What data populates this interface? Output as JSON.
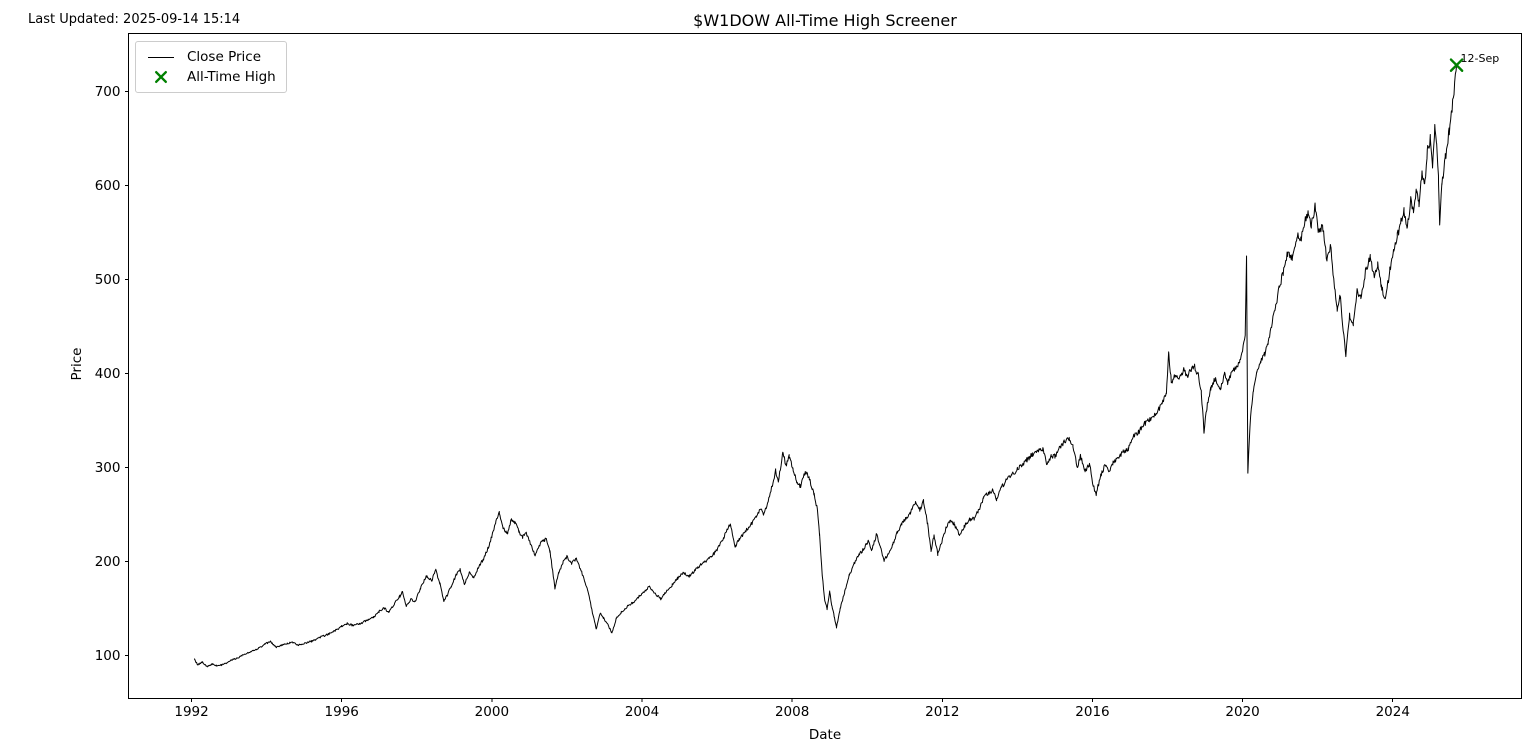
{
  "window": {
    "last_updated": "Last Updated: 2025-09-14 15:14"
  },
  "chart_data": {
    "type": "line",
    "title": "$W1DOW All-Time High Screener",
    "xlabel": "Date",
    "ylabel": "Price",
    "grid": false,
    "x_ticks": [
      1992,
      1996,
      2000,
      2004,
      2008,
      2012,
      2016,
      2020,
      2024
    ],
    "y_ticks": [
      100,
      200,
      300,
      400,
      500,
      600,
      700
    ],
    "xlim": [
      1990.32,
      2027.43
    ],
    "ylim": [
      54.3,
      761.7
    ],
    "line_color": "#000000",
    "ath_color": "#008000",
    "legend": {
      "position": "upper-left",
      "entries": [
        "Close Price",
        "All-Time High"
      ]
    },
    "ath_point": {
      "date_label": "12-Sep",
      "year": 2025.7,
      "price": 728
    },
    "close_price_anchors": [
      [
        1992.08,
        96
      ],
      [
        1992.16,
        90
      ],
      [
        1992.28,
        93
      ],
      [
        1992.42,
        88
      ],
      [
        1992.55,
        91
      ],
      [
        1992.68,
        89
      ],
      [
        1992.8,
        90
      ],
      [
        1992.92,
        92
      ],
      [
        1993.05,
        95
      ],
      [
        1993.2,
        97
      ],
      [
        1993.35,
        100
      ],
      [
        1993.5,
        103
      ],
      [
        1993.65,
        105
      ],
      [
        1993.8,
        108
      ],
      [
        1993.95,
        112
      ],
      [
        1994.1,
        115
      ],
      [
        1994.25,
        109
      ],
      [
        1994.4,
        111
      ],
      [
        1994.55,
        113
      ],
      [
        1994.7,
        114
      ],
      [
        1994.85,
        111
      ],
      [
        1995.0,
        113
      ],
      [
        1995.2,
        115
      ],
      [
        1995.4,
        119
      ],
      [
        1995.6,
        122
      ],
      [
        1995.8,
        126
      ],
      [
        1996.0,
        131
      ],
      [
        1996.15,
        134
      ],
      [
        1996.3,
        132
      ],
      [
        1996.5,
        134
      ],
      [
        1996.7,
        138
      ],
      [
        1996.85,
        141
      ],
      [
        1997.0,
        147
      ],
      [
        1997.12,
        151
      ],
      [
        1997.25,
        146
      ],
      [
        1997.4,
        155
      ],
      [
        1997.55,
        163
      ],
      [
        1997.62,
        168
      ],
      [
        1997.72,
        153
      ],
      [
        1997.85,
        160
      ],
      [
        1997.95,
        157
      ],
      [
        1998.1,
        172
      ],
      [
        1998.25,
        184
      ],
      [
        1998.4,
        180
      ],
      [
        1998.5,
        191
      ],
      [
        1998.62,
        176
      ],
      [
        1998.72,
        158
      ],
      [
        1998.82,
        165
      ],
      [
        1998.92,
        174
      ],
      [
        1999.05,
        186
      ],
      [
        1999.15,
        192
      ],
      [
        1999.27,
        176
      ],
      [
        1999.4,
        189
      ],
      [
        1999.52,
        183
      ],
      [
        1999.65,
        194
      ],
      [
        1999.78,
        203
      ],
      [
        1999.9,
        214
      ],
      [
        2000.0,
        227
      ],
      [
        2000.1,
        241
      ],
      [
        2000.2,
        253
      ],
      [
        2000.3,
        235
      ],
      [
        2000.42,
        230
      ],
      [
        2000.52,
        245
      ],
      [
        2000.62,
        241
      ],
      [
        2000.72,
        232
      ],
      [
        2000.82,
        226
      ],
      [
        2000.92,
        230
      ],
      [
        2001.02,
        220
      ],
      [
        2001.15,
        207
      ],
      [
        2001.3,
        220
      ],
      [
        2001.45,
        224
      ],
      [
        2001.55,
        210
      ],
      [
        2001.68,
        172
      ],
      [
        2001.78,
        188
      ],
      [
        2001.9,
        200
      ],
      [
        2002.0,
        205
      ],
      [
        2002.12,
        198
      ],
      [
        2002.25,
        203
      ],
      [
        2002.4,
        188
      ],
      [
        2002.55,
        170
      ],
      [
        2002.68,
        146
      ],
      [
        2002.78,
        128
      ],
      [
        2002.88,
        145
      ],
      [
        2002.98,
        140
      ],
      [
        2003.1,
        132
      ],
      [
        2003.2,
        124
      ],
      [
        2003.32,
        140
      ],
      [
        2003.45,
        146
      ],
      [
        2003.6,
        152
      ],
      [
        2003.75,
        156
      ],
      [
        2003.9,
        162
      ],
      [
        2004.05,
        168
      ],
      [
        2004.2,
        173
      ],
      [
        2004.35,
        166
      ],
      [
        2004.5,
        160
      ],
      [
        2004.65,
        168
      ],
      [
        2004.8,
        175
      ],
      [
        2004.95,
        182
      ],
      [
        2005.1,
        188
      ],
      [
        2005.25,
        184
      ],
      [
        2005.4,
        190
      ],
      [
        2005.55,
        196
      ],
      [
        2005.7,
        200
      ],
      [
        2005.85,
        206
      ],
      [
        2006.0,
        212
      ],
      [
        2006.18,
        226
      ],
      [
        2006.35,
        240
      ],
      [
        2006.48,
        216
      ],
      [
        2006.6,
        224
      ],
      [
        2006.75,
        232
      ],
      [
        2006.9,
        239
      ],
      [
        2007.05,
        248
      ],
      [
        2007.15,
        256
      ],
      [
        2007.25,
        250
      ],
      [
        2007.38,
        268
      ],
      [
        2007.48,
        282
      ],
      [
        2007.56,
        297
      ],
      [
        2007.63,
        284
      ],
      [
        2007.75,
        316
      ],
      [
        2007.84,
        302
      ],
      [
        2007.92,
        312
      ],
      [
        2008.02,
        298
      ],
      [
        2008.12,
        286
      ],
      [
        2008.22,
        280
      ],
      [
        2008.35,
        296
      ],
      [
        2008.45,
        289
      ],
      [
        2008.58,
        272
      ],
      [
        2008.67,
        256
      ],
      [
        2008.73,
        228
      ],
      [
        2008.8,
        186
      ],
      [
        2008.87,
        158
      ],
      [
        2008.93,
        150
      ],
      [
        2009.0,
        168
      ],
      [
        2009.06,
        152
      ],
      [
        2009.12,
        142
      ],
      [
        2009.18,
        130
      ],
      [
        2009.28,
        150
      ],
      [
        2009.4,
        168
      ],
      [
        2009.52,
        185
      ],
      [
        2009.65,
        198
      ],
      [
        2009.78,
        207
      ],
      [
        2009.9,
        213
      ],
      [
        2010.02,
        222
      ],
      [
        2010.12,
        212
      ],
      [
        2010.25,
        229
      ],
      [
        2010.35,
        215
      ],
      [
        2010.45,
        201
      ],
      [
        2010.55,
        208
      ],
      [
        2010.68,
        218
      ],
      [
        2010.8,
        231
      ],
      [
        2010.92,
        240
      ],
      [
        2011.02,
        245
      ],
      [
        2011.15,
        252
      ],
      [
        2011.28,
        263
      ],
      [
        2011.4,
        255
      ],
      [
        2011.5,
        264
      ],
      [
        2011.6,
        242
      ],
      [
        2011.7,
        212
      ],
      [
        2011.78,
        228
      ],
      [
        2011.88,
        208
      ],
      [
        2011.98,
        220
      ],
      [
        2012.1,
        236
      ],
      [
        2012.2,
        243
      ],
      [
        2012.32,
        240
      ],
      [
        2012.45,
        228
      ],
      [
        2012.58,
        237
      ],
      [
        2012.7,
        244
      ],
      [
        2012.85,
        246
      ],
      [
        2012.95,
        253
      ],
      [
        2013.1,
        267
      ],
      [
        2013.22,
        273
      ],
      [
        2013.35,
        276
      ],
      [
        2013.45,
        266
      ],
      [
        2013.58,
        279
      ],
      [
        2013.72,
        287
      ],
      [
        2013.85,
        292
      ],
      [
        2014.0,
        298
      ],
      [
        2014.12,
        303
      ],
      [
        2014.25,
        308
      ],
      [
        2014.4,
        314
      ],
      [
        2014.55,
        319
      ],
      [
        2014.68,
        320
      ],
      [
        2014.78,
        303
      ],
      [
        2014.9,
        312
      ],
      [
        2015.0,
        312
      ],
      [
        2015.12,
        320
      ],
      [
        2015.25,
        328
      ],
      [
        2015.38,
        330
      ],
      [
        2015.48,
        322
      ],
      [
        2015.6,
        300
      ],
      [
        2015.68,
        312
      ],
      [
        2015.8,
        296
      ],
      [
        2015.92,
        304
      ],
      [
        2016.02,
        281
      ],
      [
        2016.1,
        272
      ],
      [
        2016.22,
        292
      ],
      [
        2016.35,
        303
      ],
      [
        2016.45,
        295
      ],
      [
        2016.55,
        305
      ],
      [
        2016.68,
        309
      ],
      [
        2016.82,
        317
      ],
      [
        2016.95,
        320
      ],
      [
        2017.1,
        333
      ],
      [
        2017.25,
        339
      ],
      [
        2017.4,
        347
      ],
      [
        2017.55,
        352
      ],
      [
        2017.7,
        359
      ],
      [
        2017.85,
        367
      ],
      [
        2017.97,
        379
      ],
      [
        2018.03,
        423
      ],
      [
        2018.1,
        391
      ],
      [
        2018.2,
        398
      ],
      [
        2018.3,
        392
      ],
      [
        2018.42,
        404
      ],
      [
        2018.52,
        397
      ],
      [
        2018.62,
        403
      ],
      [
        2018.72,
        407
      ],
      [
        2018.82,
        398
      ],
      [
        2018.9,
        381
      ],
      [
        2018.97,
        338
      ],
      [
        2019.05,
        364
      ],
      [
        2019.15,
        385
      ],
      [
        2019.28,
        396
      ],
      [
        2019.4,
        382
      ],
      [
        2019.52,
        399
      ],
      [
        2019.6,
        390
      ],
      [
        2019.72,
        402
      ],
      [
        2019.83,
        406
      ],
      [
        2019.92,
        414
      ],
      [
        2020.0,
        425
      ],
      [
        2020.07,
        440
      ],
      [
        2020.105,
        525
      ],
      [
        2020.14,
        294
      ],
      [
        2020.2,
        348
      ],
      [
        2020.28,
        378
      ],
      [
        2020.38,
        402
      ],
      [
        2020.48,
        412
      ],
      [
        2020.58,
        420
      ],
      [
        2020.68,
        432
      ],
      [
        2020.78,
        452
      ],
      [
        2020.88,
        472
      ],
      [
        2020.98,
        492
      ],
      [
        2021.08,
        507
      ],
      [
        2021.2,
        528
      ],
      [
        2021.32,
        522
      ],
      [
        2021.45,
        548
      ],
      [
        2021.55,
        542
      ],
      [
        2021.65,
        560
      ],
      [
        2021.75,
        572
      ],
      [
        2021.83,
        558
      ],
      [
        2021.93,
        578
      ],
      [
        2022.03,
        550
      ],
      [
        2022.13,
        556
      ],
      [
        2022.25,
        520
      ],
      [
        2022.35,
        536
      ],
      [
        2022.45,
        490
      ],
      [
        2022.52,
        470
      ],
      [
        2022.6,
        482
      ],
      [
        2022.68,
        448
      ],
      [
        2022.75,
        421
      ],
      [
        2022.85,
        462
      ],
      [
        2022.95,
        452
      ],
      [
        2023.05,
        490
      ],
      [
        2023.15,
        480
      ],
      [
        2023.28,
        510
      ],
      [
        2023.4,
        523
      ],
      [
        2023.5,
        505
      ],
      [
        2023.6,
        515
      ],
      [
        2023.7,
        492
      ],
      [
        2023.8,
        476
      ],
      [
        2023.92,
        510
      ],
      [
        2024.02,
        532
      ],
      [
        2024.12,
        546
      ],
      [
        2024.22,
        562
      ],
      [
        2024.3,
        573
      ],
      [
        2024.38,
        551
      ],
      [
        2024.48,
        586
      ],
      [
        2024.55,
        570
      ],
      [
        2024.63,
        596
      ],
      [
        2024.7,
        580
      ],
      [
        2024.78,
        614
      ],
      [
        2024.85,
        600
      ],
      [
        2024.92,
        636
      ],
      [
        2025.0,
        650
      ],
      [
        2025.06,
        622
      ],
      [
        2025.12,
        661
      ],
      [
        2025.17,
        644
      ],
      [
        2025.22,
        606
      ],
      [
        2025.25,
        558
      ],
      [
        2025.31,
        600
      ],
      [
        2025.4,
        629
      ],
      [
        2025.5,
        656
      ],
      [
        2025.58,
        681
      ],
      [
        2025.65,
        706
      ],
      [
        2025.7,
        728
      ]
    ]
  }
}
